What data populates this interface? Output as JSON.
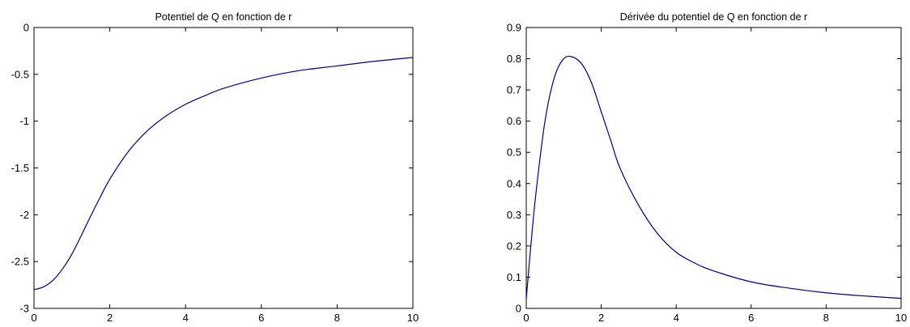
{
  "chart_data": [
    {
      "type": "line",
      "title": "Potentiel de Q en fonction de r",
      "xlabel": "",
      "ylabel": "",
      "xlim": [
        0,
        10
      ],
      "ylim": [
        -3,
        0
      ],
      "xticks": [
        0,
        2,
        4,
        6,
        8,
        10
      ],
      "xtick_labels": [
        "0",
        "2",
        "4",
        "6",
        "8",
        "10"
      ],
      "yticks": [
        0,
        -0.5,
        -1,
        -1.5,
        -2,
        -2.5,
        -3
      ],
      "ytick_labels": [
        "0",
        "-0.5",
        "-1",
        "-1.5",
        "-2",
        "-2.5",
        "-3"
      ],
      "grid": false,
      "color": "#000080",
      "series": [
        {
          "x": [
            0,
            0.25,
            0.5,
            0.75,
            1,
            1.25,
            1.5,
            1.75,
            2,
            2.5,
            3,
            3.5,
            4,
            4.5,
            5,
            6,
            7,
            8,
            9,
            10
          ],
          "y": [
            -2.8,
            -2.77,
            -2.7,
            -2.58,
            -2.42,
            -2.22,
            -2.01,
            -1.81,
            -1.62,
            -1.32,
            -1.1,
            -0.94,
            -0.82,
            -0.73,
            -0.65,
            -0.54,
            -0.46,
            -0.41,
            -0.36,
            -0.32
          ]
        }
      ]
    },
    {
      "type": "line",
      "title": "Dérivée du potentiel de Q en fonction de r",
      "xlabel": "",
      "ylabel": "",
      "xlim": [
        0,
        10
      ],
      "ylim": [
        0,
        0.9
      ],
      "xticks": [
        0,
        2,
        4,
        6,
        8,
        10
      ],
      "xtick_labels": [
        "0",
        "2",
        "4",
        "6",
        "8",
        "10"
      ],
      "yticks": [
        0,
        0.1,
        0.2,
        0.3,
        0.4,
        0.5,
        0.6,
        0.7,
        0.8,
        0.9
      ],
      "ytick_labels": [
        "0",
        "0.1",
        "0.2",
        "0.3",
        "0.4",
        "0.5",
        "0.6",
        "0.7",
        "0.8",
        "0.9"
      ],
      "grid": false,
      "color": "#000080",
      "series": [
        {
          "x": [
            0,
            0.1,
            0.25,
            0.5,
            0.75,
            1,
            1.25,
            1.5,
            1.75,
            2,
            2.25,
            2.5,
            3,
            3.5,
            4,
            4.5,
            5,
            6,
            7,
            8,
            9,
            10
          ],
          "y": [
            0.03,
            0.17,
            0.36,
            0.6,
            0.74,
            0.8,
            0.805,
            0.78,
            0.72,
            0.63,
            0.54,
            0.45,
            0.33,
            0.24,
            0.18,
            0.145,
            0.12,
            0.085,
            0.065,
            0.05,
            0.04,
            0.032
          ]
        }
      ]
    }
  ]
}
